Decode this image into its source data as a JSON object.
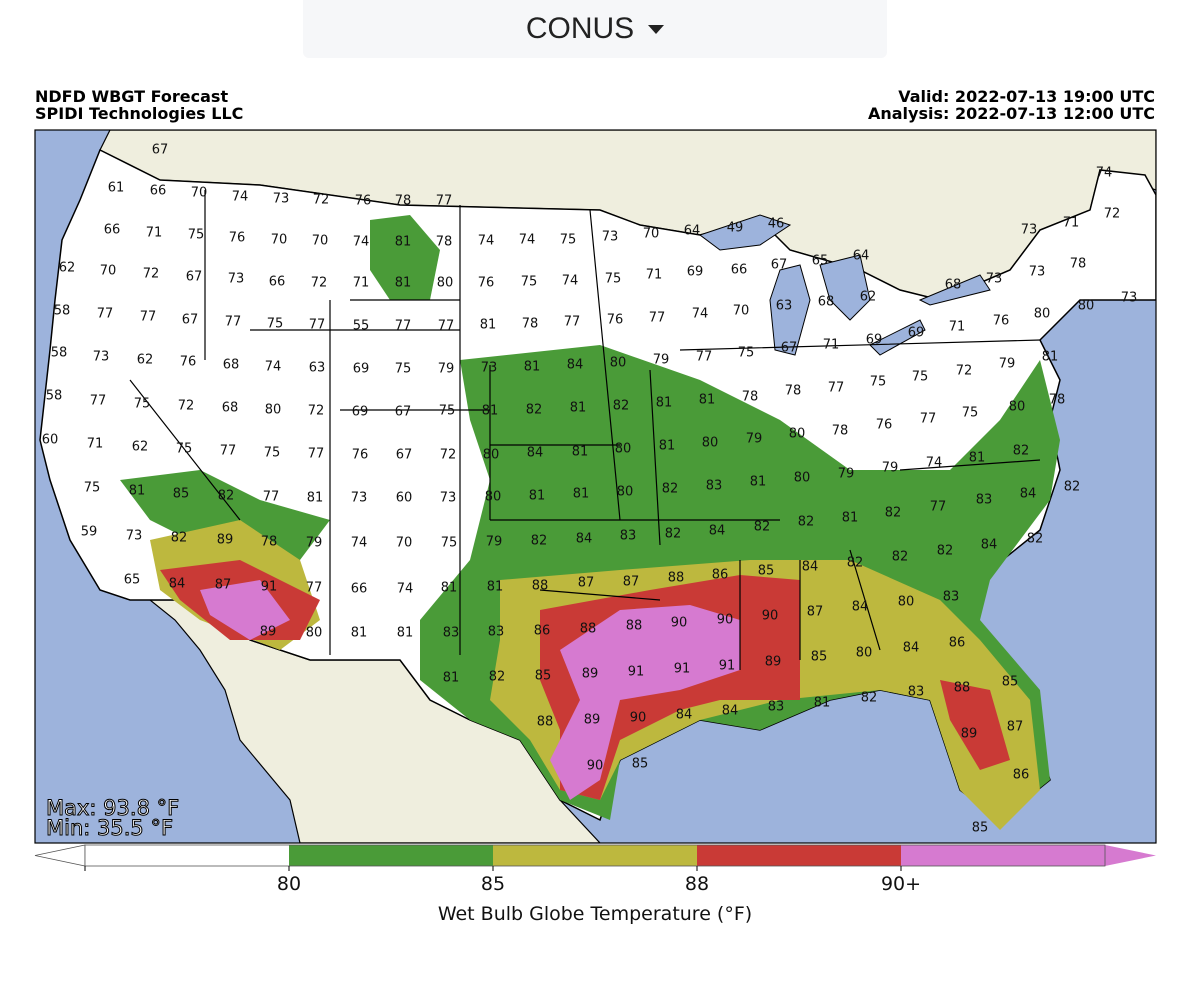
{
  "selector": {
    "label": "CONUS"
  },
  "map": {
    "title_lines": [
      "NDFD WBGT Forecast",
      "SPIDI Technologies LLC"
    ],
    "valid": "Valid: 2022-07-13 19:00 UTC",
    "analysis": "Analysis: 2022-07-13 12:00 UTC",
    "max": "Max: 93.8 °F",
    "min": "Min: 35.5 °F",
    "station_values": [
      67,
      61,
      66,
      70,
      74,
      73,
      72,
      76,
      78,
      77,
      74,
      71,
      72,
      66,
      71,
      75,
      76,
      70,
      70,
      74,
      81,
      78,
      74,
      74,
      75,
      73,
      70,
      64,
      49,
      46,
      73,
      62,
      70,
      72,
      67,
      73,
      66,
      72,
      71,
      81,
      80,
      76,
      75,
      74,
      75,
      71,
      69,
      66,
      67,
      65,
      64,
      73,
      73,
      78,
      73,
      58,
      77,
      77,
      67,
      77,
      75,
      77,
      55,
      77,
      77,
      81,
      78,
      77,
      76,
      77,
      74,
      70,
      63,
      68,
      62,
      68,
      80,
      80,
      76,
      71,
      58,
      73,
      62,
      76,
      68,
      74,
      63,
      69,
      75,
      79,
      73,
      81,
      84,
      80,
      79,
      77,
      75,
      67,
      71,
      69,
      69,
      75,
      72,
      79,
      81,
      58,
      77,
      75,
      72,
      68,
      80,
      72,
      69,
      67,
      75,
      81,
      82,
      81,
      82,
      81,
      81,
      78,
      78,
      77,
      75,
      78,
      75,
      80,
      60,
      71,
      62,
      75,
      77,
      75,
      77,
      76,
      67,
      72,
      80,
      84,
      81,
      80,
      81,
      80,
      79,
      80,
      78,
      76,
      77,
      81,
      82,
      74,
      75,
      81,
      85,
      82,
      77,
      81,
      73,
      60,
      73,
      80,
      81,
      81,
      80,
      82,
      83,
      81,
      80,
      79,
      79,
      84,
      83,
      82,
      59,
      73,
      82,
      89,
      78,
      79,
      74,
      70,
      75,
      79,
      82,
      84,
      83,
      82,
      84,
      82,
      82,
      81,
      82,
      77,
      84,
      82,
      65,
      84,
      87,
      91,
      77,
      66,
      74,
      81,
      81,
      88,
      87,
      87,
      88,
      86,
      85,
      84,
      82,
      82,
      82,
      83,
      89,
      80,
      81,
      81,
      83,
      83,
      86,
      88,
      88,
      90,
      90,
      90,
      87,
      84,
      80,
      81,
      82,
      85,
      89,
      91,
      91,
      91,
      89,
      85,
      80,
      84,
      86,
      85,
      88,
      89,
      90,
      84,
      84,
      83,
      81,
      82,
      83,
      88,
      87,
      89,
      90,
      85,
      86,
      85
    ]
  },
  "colorbar": {
    "colors": [
      "#ffffff",
      "#4a9b38",
      "#bdb83e",
      "#c93a36",
      "#d67ad0"
    ],
    "ticks": [
      "80",
      "85",
      "88",
      "90+"
    ],
    "label": "Wet Bulb Globe Temperature (°F)"
  }
}
